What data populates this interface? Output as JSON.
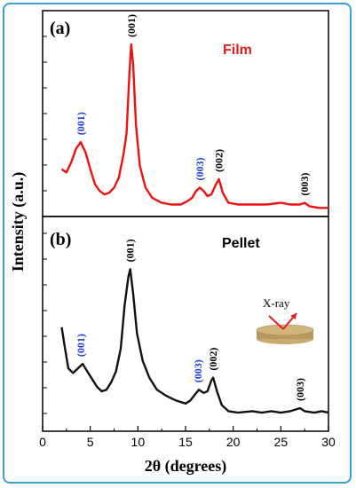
{
  "chart_data": [
    {
      "panel": "(a)",
      "sample_label": "Film",
      "type": "line",
      "line_color": "#ee1111",
      "xlim": [
        0,
        30
      ],
      "points": [
        [
          2,
          0.26
        ],
        [
          2.5,
          0.24
        ],
        [
          3,
          0.3
        ],
        [
          3.5,
          0.38
        ],
        [
          4,
          0.42
        ],
        [
          4.5,
          0.36
        ],
        [
          5,
          0.26
        ],
        [
          5.5,
          0.17
        ],
        [
          6,
          0.13
        ],
        [
          6.5,
          0.11
        ],
        [
          7,
          0.12
        ],
        [
          7.5,
          0.15
        ],
        [
          8,
          0.21
        ],
        [
          8.5,
          0.35
        ],
        [
          8.8,
          0.47
        ],
        [
          9.1,
          0.82
        ],
        [
          9.3,
          1.0
        ],
        [
          9.5,
          0.88
        ],
        [
          9.8,
          0.52
        ],
        [
          10.2,
          0.28
        ],
        [
          10.8,
          0.15
        ],
        [
          11.5,
          0.09
        ],
        [
          12.5,
          0.06
        ],
        [
          13.5,
          0.05
        ],
        [
          14.5,
          0.05
        ],
        [
          15.2,
          0.07
        ],
        [
          15.7,
          0.09
        ],
        [
          16.1,
          0.13
        ],
        [
          16.5,
          0.15
        ],
        [
          16.9,
          0.13
        ],
        [
          17.3,
          0.1
        ],
        [
          17.7,
          0.11
        ],
        [
          18.2,
          0.17
        ],
        [
          18.5,
          0.2
        ],
        [
          18.9,
          0.12
        ],
        [
          19.5,
          0.06
        ],
        [
          20.5,
          0.05
        ],
        [
          22,
          0.05
        ],
        [
          23.5,
          0.05
        ],
        [
          25,
          0.06
        ],
        [
          26,
          0.05
        ],
        [
          27,
          0.05
        ],
        [
          27.5,
          0.06
        ],
        [
          28,
          0.04
        ],
        [
          29,
          0.03
        ],
        [
          30,
          0.03
        ]
      ],
      "peak_labels": [
        {
          "text": "(001)",
          "x": 4.0,
          "color": "#1f3fd8"
        },
        {
          "text": "(001)",
          "x": 9.3,
          "color": "#000000"
        },
        {
          "text": "(003)",
          "x": 16.5,
          "color": "#1f3fd8"
        },
        {
          "text": "(002)",
          "x": 18.5,
          "color": "#000000"
        },
        {
          "text": "(003)",
          "x": 27.5,
          "color": "#000000"
        }
      ]
    },
    {
      "panel": "(b)",
      "sample_label": "Pellet",
      "type": "line",
      "line_color": "#111111",
      "xlim": [
        0,
        30
      ],
      "points": [
        [
          2,
          0.6
        ],
        [
          2.3,
          0.48
        ],
        [
          2.7,
          0.33
        ],
        [
          3.2,
          0.3
        ],
        [
          3.7,
          0.33
        ],
        [
          4.2,
          0.36
        ],
        [
          4.7,
          0.31
        ],
        [
          5.2,
          0.26
        ],
        [
          5.7,
          0.21
        ],
        [
          6.2,
          0.18
        ],
        [
          6.7,
          0.19
        ],
        [
          7.2,
          0.24
        ],
        [
          7.7,
          0.31
        ],
        [
          8.2,
          0.46
        ],
        [
          8.6,
          0.74
        ],
        [
          9.0,
          0.93
        ],
        [
          9.2,
          0.98
        ],
        [
          9.5,
          0.82
        ],
        [
          9.9,
          0.56
        ],
        [
          10.5,
          0.38
        ],
        [
          11.2,
          0.27
        ],
        [
          12,
          0.19
        ],
        [
          13,
          0.15
        ],
        [
          14,
          0.12
        ],
        [
          15,
          0.1
        ],
        [
          15.5,
          0.12
        ],
        [
          16,
          0.16
        ],
        [
          16.4,
          0.19
        ],
        [
          16.9,
          0.17
        ],
        [
          17.3,
          0.18
        ],
        [
          17.7,
          0.25
        ],
        [
          17.9,
          0.27
        ],
        [
          18.3,
          0.18
        ],
        [
          18.8,
          0.09
        ],
        [
          19.5,
          0.05
        ],
        [
          20.5,
          0.04
        ],
        [
          22,
          0.05
        ],
        [
          23,
          0.04
        ],
        [
          24,
          0.05
        ],
        [
          25,
          0.04
        ],
        [
          26,
          0.05
        ],
        [
          27,
          0.07
        ],
        [
          27.5,
          0.05
        ],
        [
          28.5,
          0.04
        ],
        [
          29.3,
          0.05
        ],
        [
          30,
          0.04
        ]
      ],
      "peak_labels": [
        {
          "text": "(001)",
          "x": 4.0,
          "color": "#1f3fd8"
        },
        {
          "text": "(001)",
          "x": 9.2,
          "color": "#000000"
        },
        {
          "text": "(003)",
          "x": 16.3,
          "color": "#1f3fd8"
        },
        {
          "text": "(002)",
          "x": 17.9,
          "color": "#000000"
        },
        {
          "text": "(003)",
          "x": 27.0,
          "color": "#000000"
        }
      ]
    }
  ],
  "axes": {
    "ylabel": "Intensity (a.u.)",
    "xlabel": "2θ (degrees)",
    "x_ticks": [
      "0",
      "5",
      "10",
      "15",
      "20",
      "25",
      "30"
    ]
  },
  "inset": {
    "label": "X-ray",
    "arrow_color": "#e02020",
    "disk_color": "#b89a5e"
  }
}
